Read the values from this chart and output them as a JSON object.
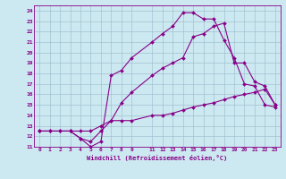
{
  "xlabel": "Windchill (Refroidissement éolien,°C)",
  "bg_color": "#cce8f0",
  "line_color": "#880088",
  "marker": "D",
  "markersize": 2,
  "linewidth": 0.8,
  "xlim": [
    -0.5,
    23.5
  ],
  "ylim": [
    11,
    24.5
  ],
  "xticks": [
    0,
    1,
    2,
    3,
    4,
    5,
    6,
    7,
    8,
    9,
    11,
    12,
    13,
    14,
    15,
    16,
    17,
    18,
    19,
    20,
    21,
    22,
    23
  ],
  "yticks": [
    11,
    12,
    13,
    14,
    15,
    16,
    17,
    18,
    19,
    20,
    21,
    22,
    23,
    24
  ],
  "grid_color": "#99bbcc",
  "line1_x": [
    0,
    1,
    2,
    3,
    4,
    5,
    6,
    7,
    8,
    9,
    11,
    12,
    13,
    14,
    15,
    16,
    17,
    18,
    19,
    20,
    21,
    22,
    23
  ],
  "line1_y": [
    12.5,
    12.5,
    12.5,
    12.5,
    12.5,
    12.5,
    13.0,
    13.5,
    13.5,
    13.5,
    14.0,
    14.0,
    14.2,
    14.5,
    14.8,
    15.0,
    15.2,
    15.5,
    15.8,
    16.0,
    16.2,
    16.5,
    15.0
  ],
  "line2_x": [
    0,
    3,
    4,
    5,
    6,
    7,
    8,
    9,
    11,
    12,
    13,
    14,
    15,
    16,
    17,
    18,
    19,
    20,
    21,
    22,
    23
  ],
  "line2_y": [
    12.5,
    12.5,
    11.8,
    11.0,
    11.5,
    17.8,
    18.3,
    19.5,
    21.0,
    21.8,
    22.5,
    23.8,
    23.8,
    23.2,
    23.2,
    21.2,
    19.5,
    17.0,
    16.8,
    15.0,
    14.8
  ],
  "line3_x": [
    0,
    1,
    2,
    3,
    4,
    5,
    6,
    7,
    8,
    9,
    11,
    12,
    13,
    14,
    15,
    16,
    17,
    18,
    19,
    20,
    21,
    22,
    23
  ],
  "line3_y": [
    12.5,
    12.5,
    12.5,
    12.5,
    11.8,
    11.5,
    12.5,
    13.5,
    15.2,
    16.2,
    17.8,
    18.5,
    19.0,
    19.5,
    21.5,
    21.8,
    22.5,
    22.8,
    19.0,
    19.0,
    17.2,
    16.8,
    15.0
  ]
}
